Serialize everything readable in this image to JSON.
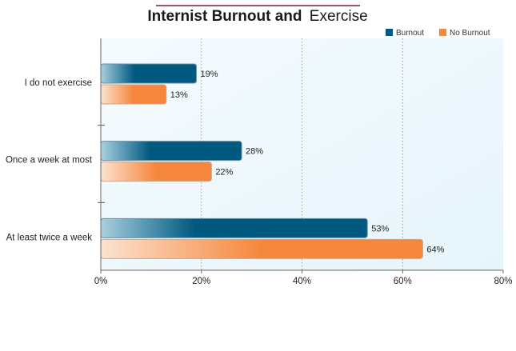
{
  "chart_data": {
    "type": "bar",
    "orientation": "horizontal",
    "title_bold": "Internist Burnout and",
    "title_regular": "Exercise",
    "categories": [
      "I do not exercise",
      "Once a week at most",
      "At least twice a week"
    ],
    "series": [
      {
        "name": "Burnout",
        "values": [
          19,
          28,
          53
        ],
        "color": "#005a80",
        "labels": [
          "19%",
          "28%",
          "53%"
        ]
      },
      {
        "name": "No Burnout",
        "values": [
          13,
          22,
          64
        ],
        "color": "#f5873c",
        "labels": [
          "13%",
          "22%",
          "64%"
        ]
      }
    ],
    "xlim": [
      0,
      80
    ],
    "xticks": [
      0,
      20,
      40,
      60,
      80
    ],
    "xtick_labels": [
      "0%",
      "20%",
      "40%",
      "60%",
      "80%"
    ],
    "xlabel": "",
    "ylabel": "",
    "grid": "vertical dotted",
    "legend_position": "top-right",
    "colors": {
      "title_rule": "#7a1f2b",
      "plot_background": "#eef8fd"
    }
  }
}
